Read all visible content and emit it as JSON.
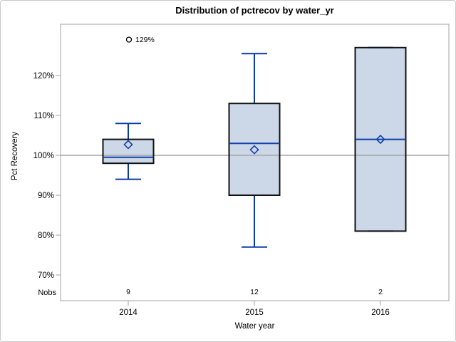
{
  "figure": {
    "title": "Distribution of pctrecov by water_yr"
  },
  "chart_data": {
    "type": "boxplot",
    "title": "Distribution of pctrecov by water_yr",
    "xlabel": "Water year",
    "ylabel": "Pct Recovery",
    "categories": [
      "2014",
      "2015",
      "2016"
    ],
    "nobs_label": "Nobs",
    "nobs": [
      9,
      12,
      2
    ],
    "y_axis": {
      "ticks": [
        120,
        110,
        100,
        90,
        80,
        70
      ],
      "tick_labels": [
        "120%",
        "110%",
        "100%",
        "90%",
        "80%",
        "70%"
      ],
      "min": 64,
      "max": 133
    },
    "reference_line": 100,
    "legend": "none",
    "grid": "off",
    "groups": [
      {
        "category": "2014",
        "n": 9,
        "whisker_low": 94,
        "q1": 98,
        "median": 99.5,
        "q3": 104,
        "whisker_high": 108,
        "mean": 102.7,
        "outliers": [
          {
            "value": 129,
            "label": "129%"
          }
        ]
      },
      {
        "category": "2015",
        "n": 12,
        "whisker_low": 77,
        "q1": 90,
        "median": 103,
        "q3": 113,
        "whisker_high": 125.5,
        "mean": 101.4,
        "outliers": []
      },
      {
        "category": "2016",
        "n": 2,
        "whisker_low": 81,
        "q1": 81,
        "median": 104,
        "q3": 127,
        "whisker_high": 127,
        "mean": 104,
        "outliers": []
      }
    ],
    "colors": {
      "box_fill": "#ccd7e7",
      "box_border": "#111111",
      "whisker": "#0b3aa5",
      "median": "#1240ab",
      "mean_marker": "#1240ab",
      "outlier": "#000000",
      "reference_line": "#a6a6a6",
      "frame": "#a3a3a3",
      "text": "#000000",
      "figure_border": "#c9c9c9"
    }
  }
}
